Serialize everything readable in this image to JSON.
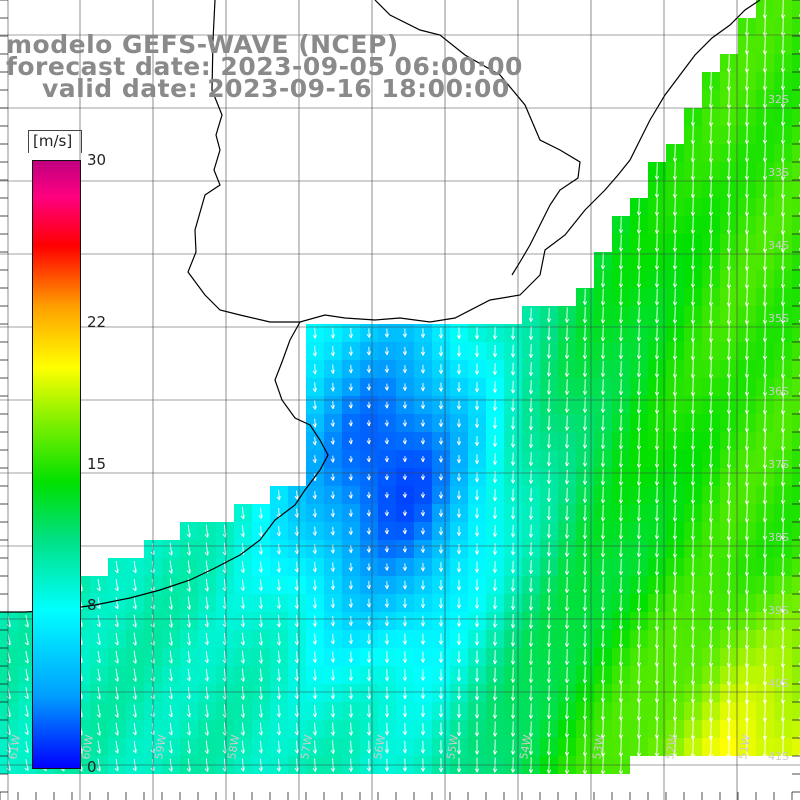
{
  "title": {
    "model": "modelo GEFS-WAVE (NCEP)",
    "forecast": "forecast date: 2023-09-05 06:00:00",
    "valid": "valid date: 2023-09-16 18:00:00"
  },
  "colorbar": {
    "unit": "[m/s]",
    "ticks": [
      "30",
      "22",
      "15",
      "8",
      "0"
    ],
    "tick_values": [
      30,
      22,
      15,
      8,
      0
    ],
    "range": [
      0,
      30
    ]
  },
  "lat_labels": [
    "32S",
    "33S",
    "34S",
    "35S",
    "36S",
    "37S",
    "38S",
    "39S",
    "40S",
    "41S"
  ],
  "lon_labels": [
    "61W",
    "60W",
    "59W",
    "58W",
    "57W",
    "56W",
    "55W",
    "54W",
    "53W",
    "52W",
    "51W"
  ],
  "colors": {
    "land": "#ffffff",
    "grid": "#444444",
    "coast": "#000000",
    "arrow": "#ffffff",
    "title": "#8a8a8a"
  }
}
